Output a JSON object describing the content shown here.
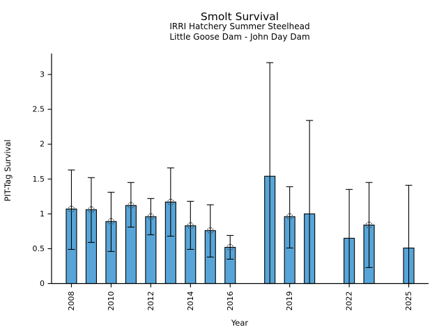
{
  "chart_data": {
    "type": "bar",
    "title": "Smolt Survival",
    "subtitle1": "IRRI Hatchery Summer Steelhead",
    "subtitle2": "Little Goose Dam - John Day Dam",
    "xlabel": "Year",
    "ylabel": "PIT-Tag Survival",
    "bar_color": "#57a5d8",
    "bar_edge_color": "#000000",
    "error_color": "#000000",
    "marker_color": "#333333",
    "grid": false,
    "legend": null,
    "xlim": [
      2007,
      2026
    ],
    "ylim": [
      0,
      3.3
    ],
    "x_ticks": [
      2008,
      2010,
      2012,
      2014,
      2016,
      2019,
      2022,
      2025
    ],
    "y_ticks": [
      0,
      0.5,
      1,
      1.5,
      2,
      2.5,
      3
    ],
    "points": [
      {
        "year": 2008,
        "value": 1.07,
        "ci_low": 0.49,
        "ci_high": 1.63,
        "marker": true
      },
      {
        "year": 2009,
        "value": 1.06,
        "ci_low": 0.59,
        "ci_high": 1.52,
        "marker": true
      },
      {
        "year": 2010,
        "value": 0.89,
        "ci_low": 0.46,
        "ci_high": 1.31,
        "marker": true
      },
      {
        "year": 2011,
        "value": 1.12,
        "ci_low": 0.81,
        "ci_high": 1.45,
        "marker": true
      },
      {
        "year": 2012,
        "value": 0.96,
        "ci_low": 0.7,
        "ci_high": 1.22,
        "marker": true
      },
      {
        "year": 2013,
        "value": 1.17,
        "ci_low": 0.68,
        "ci_high": 1.66,
        "marker": true
      },
      {
        "year": 2014,
        "value": 0.83,
        "ci_low": 0.49,
        "ci_high": 1.18,
        "marker": true
      },
      {
        "year": 2015,
        "value": 0.76,
        "ci_low": 0.38,
        "ci_high": 1.13,
        "marker": true
      },
      {
        "year": 2016,
        "value": 0.52,
        "ci_low": 0.35,
        "ci_high": 0.69,
        "marker": true
      },
      {
        "year": 2018,
        "value": 1.54,
        "ci_low": 0.0,
        "ci_high": 3.17,
        "marker": false
      },
      {
        "year": 2019,
        "value": 0.96,
        "ci_low": 0.51,
        "ci_high": 1.39,
        "marker": true
      },
      {
        "year": 2020,
        "value": 1.0,
        "ci_low": 0.0,
        "ci_high": 2.34,
        "marker": false
      },
      {
        "year": 2022,
        "value": 0.65,
        "ci_low": 0.0,
        "ci_high": 1.35,
        "marker": false
      },
      {
        "year": 2023,
        "value": 0.84,
        "ci_low": 0.23,
        "ci_high": 1.45,
        "marker": true
      },
      {
        "year": 2025,
        "value": 0.51,
        "ci_low": 0.0,
        "ci_high": 1.41,
        "marker": false
      }
    ]
  }
}
